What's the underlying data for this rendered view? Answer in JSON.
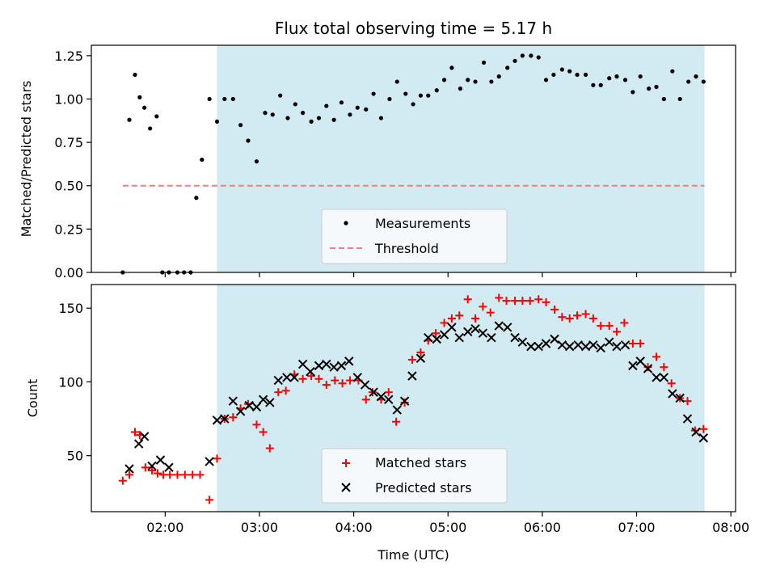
{
  "colors": {
    "shade": "#add8e6",
    "measurement": "#000000",
    "threshold": "#f08080",
    "matched": "#ff0000",
    "predicted": "#000000",
    "legend_bg": "#f5f9fb"
  },
  "chart_data": [
    {
      "type": "scatter",
      "title": "Flux total observing time = 5.17 h",
      "ylabel": "Matched/Predicted stars",
      "xlabel": "",
      "xlim": [
        1.217,
        8.05
      ],
      "ylim": [
        0,
        1.31
      ],
      "yticks": [
        0,
        0.25,
        0.5,
        0.75,
        1.0,
        1.25
      ],
      "ytick_labels": [
        "0.00",
        "0.25",
        "0.50",
        "0.75",
        "1.00",
        "1.25"
      ],
      "xticks": [
        2,
        3,
        4,
        5,
        6,
        7,
        8
      ],
      "shaded_region": [
        2.55,
        7.72
      ],
      "legend": {
        "placement": "lower-center",
        "entries": [
          "Measurements",
          "Threshold"
        ]
      },
      "threshold": {
        "name": "Threshold",
        "value": 0.5,
        "x_range": [
          1.55,
          7.72
        ]
      },
      "series": [
        {
          "name": "Measurements",
          "marker": "dot",
          "x": [
            1.55,
            1.62,
            1.68,
            1.73,
            1.78,
            1.84,
            1.91,
            1.97,
            2.04,
            2.13,
            2.2,
            2.27,
            2.33,
            2.39,
            2.47,
            2.55,
            2.63,
            2.72,
            2.8,
            2.88,
            2.97,
            3.06,
            3.14,
            3.22,
            3.3,
            3.38,
            3.46,
            3.55,
            3.63,
            3.71,
            3.79,
            3.87,
            3.96,
            4.04,
            4.13,
            4.21,
            4.29,
            4.38,
            4.46,
            4.55,
            4.63,
            4.71,
            4.79,
            4.88,
            4.96,
            5.04,
            5.13,
            5.21,
            5.29,
            5.38,
            5.46,
            5.54,
            5.63,
            5.71,
            5.79,
            5.88,
            5.96,
            6.04,
            6.12,
            6.21,
            6.29,
            6.37,
            6.46,
            6.54,
            6.62,
            6.71,
            6.79,
            6.88,
            6.96,
            7.04,
            7.13,
            7.21,
            7.29,
            7.38,
            7.46,
            7.55,
            7.63,
            7.71
          ],
          "y": [
            0.0,
            0.88,
            1.14,
            1.01,
            0.95,
            0.83,
            0.9,
            0.0,
            0.0,
            0.0,
            0.0,
            0.0,
            0.43,
            0.65,
            1.0,
            0.87,
            1.0,
            1.0,
            0.85,
            0.76,
            0.64,
            0.92,
            0.91,
            1.02,
            0.89,
            0.97,
            0.92,
            0.87,
            0.89,
            0.96,
            0.88,
            0.98,
            0.91,
            0.95,
            0.94,
            1.03,
            0.89,
            1.0,
            1.1,
            1.03,
            0.97,
            1.02,
            1.02,
            1.05,
            1.11,
            1.18,
            1.06,
            1.11,
            1.1,
            1.21,
            1.1,
            1.13,
            1.18,
            1.22,
            1.25,
            1.25,
            1.24,
            1.11,
            1.14,
            1.17,
            1.16,
            1.14,
            1.14,
            1.08,
            1.08,
            1.12,
            1.13,
            1.11,
            1.04,
            1.13,
            1.06,
            1.07,
            1.0,
            1.16,
            1.0,
            1.1,
            1.13,
            1.1
          ]
        }
      ]
    },
    {
      "type": "scatter",
      "title": "",
      "xlabel": "Time (UTC)",
      "ylabel": "Count",
      "xlim": [
        1.217,
        8.05
      ],
      "ylim": [
        12,
        166
      ],
      "yticks": [
        50,
        100,
        150
      ],
      "ytick_labels": [
        "50",
        "100",
        "150"
      ],
      "xticks": [
        2,
        3,
        4,
        5,
        6,
        7,
        8
      ],
      "xtick_labels": [
        "02:00",
        "03:00",
        "04:00",
        "05:00",
        "06:00",
        "07:00",
        "08:00"
      ],
      "shaded_region": [
        2.55,
        7.72
      ],
      "legend": {
        "placement": "lower-center",
        "entries": [
          "Matched stars",
          "Predicted stars"
        ]
      },
      "series": [
        {
          "name": "Matched stars",
          "marker": "plus",
          "x": [
            1.55,
            1.62,
            1.68,
            1.73,
            1.79,
            1.86,
            1.92,
            1.98,
            2.05,
            2.13,
            2.21,
            2.29,
            2.37,
            2.47,
            2.55,
            2.63,
            2.72,
            2.8,
            2.88,
            2.97,
            3.04,
            3.11,
            3.2,
            3.28,
            3.37,
            3.46,
            3.55,
            3.63,
            3.71,
            3.8,
            3.88,
            3.96,
            4.05,
            4.13,
            4.2,
            4.29,
            4.37,
            4.45,
            4.54,
            4.62,
            4.71,
            4.79,
            4.87,
            4.96,
            5.04,
            5.12,
            5.21,
            5.29,
            5.37,
            5.45,
            5.54,
            5.62,
            5.71,
            5.79,
            5.87,
            5.96,
            6.04,
            6.13,
            6.21,
            6.29,
            6.37,
            6.46,
            6.54,
            6.62,
            6.71,
            6.79,
            6.87,
            6.96,
            7.04,
            7.12,
            7.21,
            7.29,
            7.37,
            7.46,
            7.54,
            7.62,
            7.71
          ],
          "y": [
            33,
            37,
            66,
            64,
            42,
            40,
            38,
            37,
            37,
            37,
            37,
            37,
            37,
            20,
            48,
            75,
            76,
            82,
            85,
            71,
            66,
            55,
            93,
            94,
            105,
            102,
            104,
            102,
            98,
            101,
            99,
            101,
            101,
            88,
            93,
            88,
            93,
            73,
            86,
            115,
            120,
            128,
            133,
            140,
            143,
            145,
            156,
            143,
            151,
            147,
            157,
            155,
            155,
            155,
            155,
            156,
            154,
            149,
            144,
            143,
            145,
            146,
            143,
            138,
            138,
            134,
            140,
            126,
            126,
            110,
            117,
            110,
            99,
            89,
            87,
            67,
            68
          ]
        },
        {
          "name": "Predicted stars",
          "marker": "x",
          "x": [
            1.62,
            1.72,
            1.78,
            1.86,
            1.95,
            2.04,
            2.47,
            2.55,
            2.63,
            2.72,
            2.8,
            2.89,
            2.97,
            3.04,
            3.11,
            3.2,
            3.29,
            3.37,
            3.46,
            3.54,
            3.63,
            3.71,
            3.79,
            3.87,
            3.95,
            4.04,
            4.12,
            4.21,
            4.29,
            4.37,
            4.46,
            4.54,
            4.62,
            4.71,
            4.79,
            4.88,
            4.96,
            5.04,
            5.12,
            5.21,
            5.29,
            5.37,
            5.46,
            5.54,
            5.63,
            5.71,
            5.79,
            5.88,
            5.96,
            6.04,
            6.13,
            6.21,
            6.29,
            6.38,
            6.46,
            6.54,
            6.62,
            6.71,
            6.79,
            6.88,
            6.96,
            7.04,
            7.12,
            7.21,
            7.29,
            7.38,
            7.46,
            7.54,
            7.63,
            7.71
          ],
          "y": [
            41,
            58,
            63,
            43,
            47,
            42,
            46,
            74,
            75,
            87,
            80,
            84,
            83,
            88,
            86,
            101,
            103,
            103,
            112,
            107,
            111,
            112,
            110,
            111,
            114,
            103,
            98,
            93,
            90,
            88,
            81,
            87,
            104,
            116,
            130,
            129,
            132,
            137,
            130,
            134,
            136,
            133,
            130,
            138,
            137,
            130,
            127,
            124,
            124,
            126,
            129,
            125,
            124,
            125,
            124,
            125,
            123,
            127,
            124,
            125,
            111,
            114,
            109,
            103,
            103,
            92,
            89,
            75,
            66,
            62
          ]
        }
      ]
    }
  ]
}
